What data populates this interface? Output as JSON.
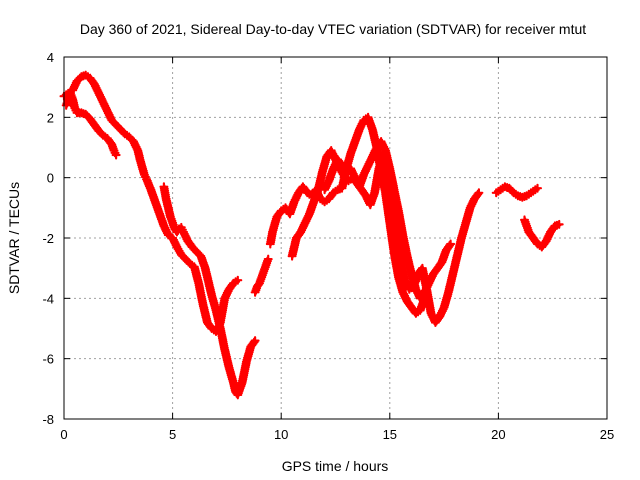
{
  "chart_data": {
    "type": "scatter",
    "title": "Day 360 of 2021, Sidereal Day-to-day VTEC variation (SDTVAR) for receiver mtut",
    "xlabel": "GPS time / hours",
    "ylabel": "SDTVAR / TECUs",
    "xlim": [
      0,
      25
    ],
    "ylim": [
      -8,
      4
    ],
    "xticks": [
      0,
      5,
      10,
      15,
      20,
      25
    ],
    "yticks": [
      -8,
      -6,
      -4,
      -2,
      0,
      2,
      4
    ],
    "xtick_labels": [
      "0",
      "5",
      "10",
      "15",
      "20",
      "25"
    ],
    "ytick_labels": [
      "-8",
      "-6",
      "-4",
      "-2",
      "0",
      "2",
      "4"
    ],
    "grid": true,
    "marker": "+",
    "color": "#ff0000",
    "series": [
      {
        "name": "s1",
        "x": [
          0.0,
          0.2,
          0.4,
          0.6,
          0.8,
          1.0,
          1.2,
          1.4,
          1.6,
          1.8,
          2.0,
          2.2,
          2.4,
          2.6,
          2.8,
          3.0,
          3.2,
          3.4,
          3.5,
          3.6,
          3.7,
          3.8,
          4.0,
          4.2,
          4.4,
          4.6,
          4.8,
          5.0,
          5.2,
          5.4,
          5.6,
          5.8,
          6.0,
          6.2,
          6.4,
          6.6,
          6.8,
          7.0,
          7.1,
          7.2,
          7.3,
          7.4,
          7.6,
          7.8,
          8.0
        ],
        "y": [
          2.7,
          2.8,
          2.9,
          3.2,
          3.35,
          3.4,
          3.3,
          3.1,
          2.8,
          2.5,
          2.2,
          1.9,
          1.75,
          1.6,
          1.45,
          1.35,
          1.2,
          0.9,
          0.6,
          0.35,
          0.1,
          -0.05,
          -0.4,
          -0.8,
          -1.2,
          -1.6,
          -1.9,
          -2.0,
          -2.3,
          -2.55,
          -2.7,
          -2.85,
          -2.95,
          -3.5,
          -4.2,
          -4.8,
          -5.0,
          -5.1,
          -5.0,
          -4.8,
          -4.4,
          -4.0,
          -3.7,
          -3.5,
          -3.4
        ]
      },
      {
        "name": "s2",
        "x": [
          0.1,
          0.2,
          0.3,
          0.4,
          0.5,
          0.6,
          0.8,
          1.0,
          1.2,
          1.4,
          1.6,
          1.8,
          2.0,
          2.2,
          2.3,
          2.4
        ],
        "y": [
          2.4,
          2.6,
          2.8,
          2.6,
          2.3,
          2.15,
          2.15,
          2.1,
          1.95,
          1.75,
          1.55,
          1.4,
          1.3,
          1.1,
          0.9,
          0.75
        ]
      },
      {
        "name": "s3",
        "x": [
          4.6,
          4.7,
          4.8,
          4.9,
          5.0,
          5.1,
          5.2,
          5.3,
          5.4,
          5.5,
          5.7,
          5.9,
          6.1,
          6.3,
          6.5,
          6.6,
          6.8,
          7.0,
          7.2,
          7.4,
          7.6,
          7.8,
          7.9,
          8.0,
          8.2,
          8.4,
          8.6,
          8.8
        ],
        "y": [
          -0.3,
          -0.7,
          -1.0,
          -1.3,
          -1.5,
          -1.7,
          -1.8,
          -1.7,
          -1.65,
          -1.8,
          -2.1,
          -2.3,
          -2.45,
          -2.6,
          -3.0,
          -3.3,
          -3.9,
          -4.4,
          -5.0,
          -5.7,
          -6.3,
          -6.8,
          -7.1,
          -7.2,
          -6.8,
          -6.1,
          -5.6,
          -5.4
        ]
      },
      {
        "name": "s4",
        "x": [
          8.8,
          8.9,
          9.0,
          9.1,
          9.2,
          9.3,
          9.4
        ],
        "y": [
          -3.8,
          -3.6,
          -3.5,
          -3.3,
          -3.1,
          -2.9,
          -2.7
        ]
      },
      {
        "name": "s5",
        "x": [
          9.5,
          9.6,
          9.8,
          10.0,
          10.2,
          10.4,
          10.6,
          10.8,
          11.0,
          11.2,
          11.4,
          11.6,
          11.8,
          12.0,
          12.2,
          12.4,
          12.6,
          12.8,
          13.0,
          13.2,
          13.4,
          13.6,
          13.8,
          14.0,
          14.2,
          14.4,
          14.6,
          14.8,
          15.0,
          15.2,
          15.4,
          15.6,
          15.8,
          16.0,
          16.2,
          16.4,
          16.6
        ],
        "y": [
          -2.2,
          -1.8,
          -1.3,
          -1.1,
          -1.0,
          -1.2,
          -0.8,
          -0.5,
          -0.3,
          -0.5,
          -0.6,
          -0.4,
          -0.7,
          -0.8,
          -0.7,
          -0.5,
          -0.4,
          -0.35,
          0.3,
          0.8,
          1.2,
          1.6,
          1.9,
          2.0,
          1.6,
          1.0,
          0.2,
          -0.5,
          -1.5,
          -2.5,
          -3.3,
          -3.8,
          -4.1,
          -4.3,
          -4.5,
          -4.4,
          -4.0
        ]
      },
      {
        "name": "s6",
        "x": [
          10.5,
          10.7,
          10.9,
          11.1,
          11.3,
          11.5,
          11.7,
          11.9,
          12.1,
          12.3,
          12.5,
          12.7,
          12.9,
          13.1,
          13.3,
          13.5,
          13.7,
          13.9,
          14.1,
          14.3,
          14.5,
          14.7,
          14.9,
          15.1,
          15.3,
          15.5,
          15.7,
          15.9,
          16.1,
          16.3,
          16.5,
          16.7,
          16.9,
          17.1,
          17.3,
          17.5,
          17.7,
          17.9,
          18.1,
          18.3,
          18.5,
          18.7,
          18.9,
          19.1
        ],
        "y": [
          -2.6,
          -2.0,
          -1.8,
          -1.5,
          -1.2,
          -0.8,
          -0.4,
          0.2,
          0.7,
          0.9,
          0.6,
          0.3,
          0.05,
          -0.1,
          0.0,
          -0.2,
          -0.4,
          -0.6,
          -0.9,
          -0.5,
          0.3,
          0.8,
          0.2,
          -1.0,
          -2.0,
          -2.8,
          -3.4,
          -3.7,
          -3.6,
          -3.2,
          -3.0,
          -3.7,
          -4.5,
          -4.8,
          -4.6,
          -4.3,
          -3.8,
          -3.2,
          -2.6,
          -2.0,
          -1.5,
          -1.0,
          -0.7,
          -0.5
        ]
      },
      {
        "name": "s7",
        "x": [
          12.0,
          12.2,
          12.4,
          12.6,
          12.8,
          13.0,
          13.2,
          13.4,
          13.6,
          13.8,
          14.0,
          14.2,
          14.4,
          14.6,
          14.8,
          15.0,
          15.2,
          15.4,
          15.6,
          15.8,
          16.0,
          16.2,
          16.4,
          16.6,
          16.8,
          17.0,
          17.2,
          17.4,
          17.6,
          17.8
        ],
        "y": [
          -0.4,
          -0.1,
          0.3,
          0.6,
          0.4,
          0.2,
          0.3,
          0.0,
          -0.3,
          0.1,
          0.4,
          0.7,
          1.0,
          1.2,
          0.9,
          0.3,
          -0.4,
          -1.1,
          -1.9,
          -2.6,
          -3.2,
          -3.7,
          -4.0,
          -3.8,
          -3.5,
          -3.2,
          -3.0,
          -2.8,
          -2.4,
          -2.2
        ]
      },
      {
        "name": "s8",
        "x": [
          19.9,
          20.1,
          20.3,
          20.5,
          20.7,
          20.9,
          21.1,
          21.3,
          21.5,
          21.7,
          21.8
        ],
        "y": [
          -0.5,
          -0.4,
          -0.3,
          -0.35,
          -0.5,
          -0.6,
          -0.65,
          -0.6,
          -0.5,
          -0.4,
          -0.35
        ]
      },
      {
        "name": "s9",
        "x": [
          21.2,
          21.3,
          21.4,
          21.6,
          21.8,
          22.0,
          22.2,
          22.4,
          22.6,
          22.8
        ],
        "y": [
          -1.4,
          -1.6,
          -1.8,
          -2.0,
          -2.2,
          -2.3,
          -2.1,
          -1.8,
          -1.6,
          -1.55
        ]
      }
    ]
  }
}
